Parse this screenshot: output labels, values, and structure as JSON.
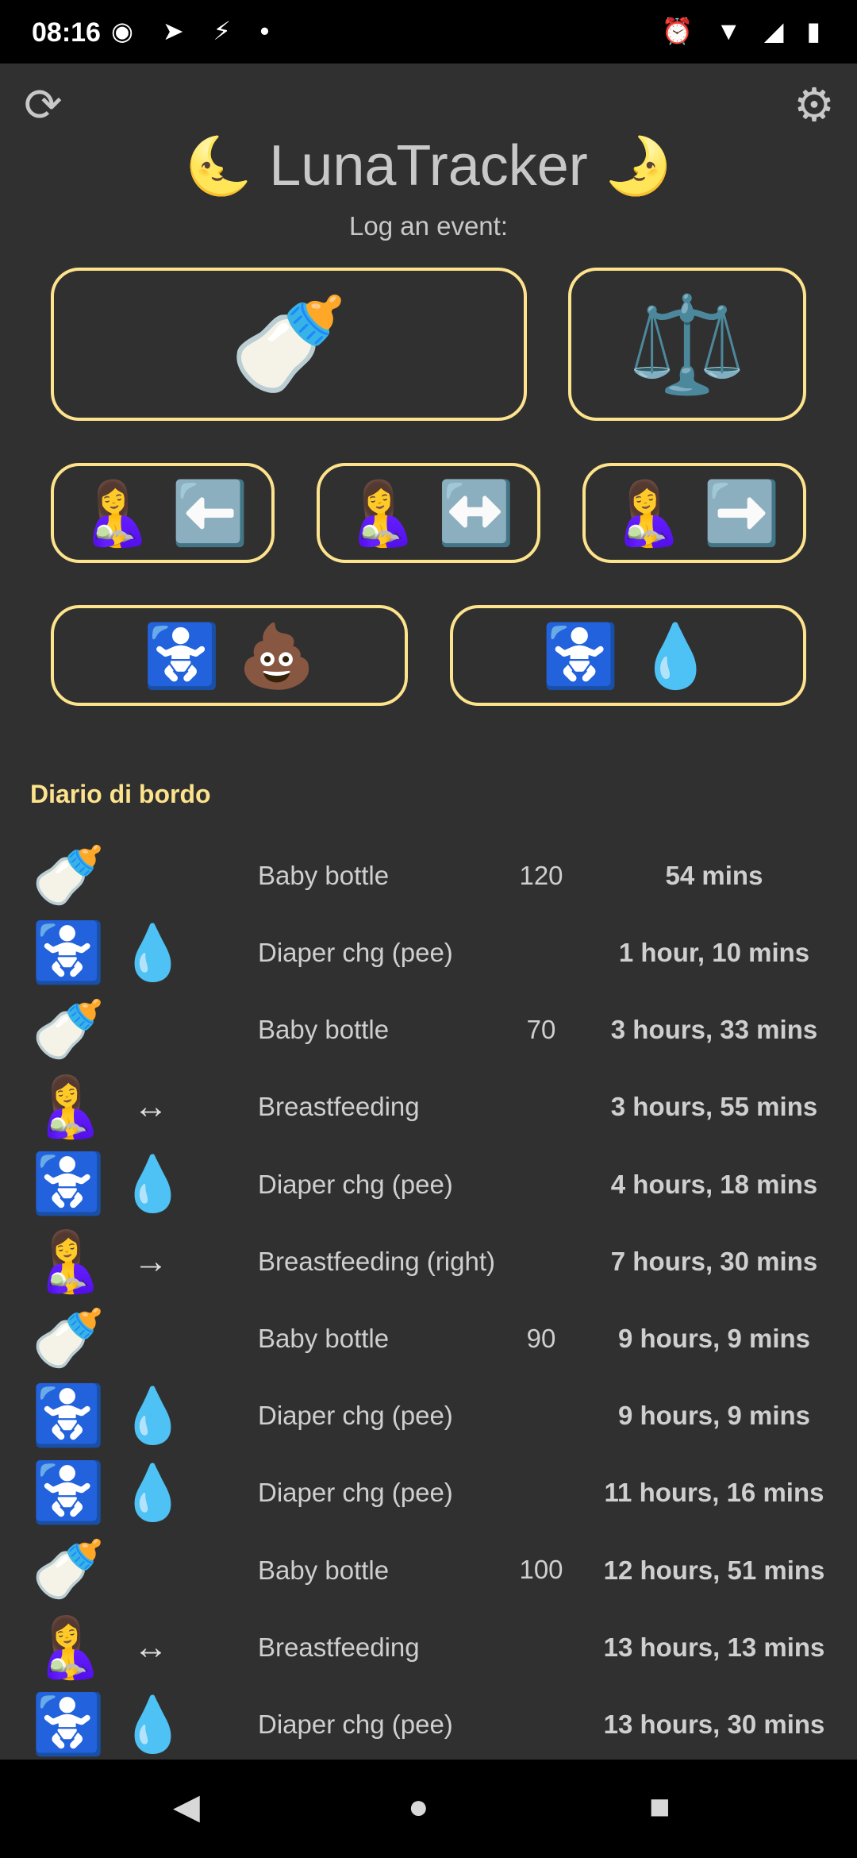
{
  "status_bar": {
    "time": "08:16",
    "left_icons": "◉ ➤ ⚡ •",
    "right_icons": "⏰ ▼ ◢ ▮"
  },
  "header": {
    "refresh_icon": "⟳",
    "settings_icon": "⚙",
    "moon_left": "🌜",
    "title": "LunaTracker",
    "moon_right": "🌛",
    "subtitle": "Log an event:"
  },
  "buttons": {
    "bottle": "🍼",
    "weight": "⚖️",
    "breast_left": [
      "🤱",
      "⬅️"
    ],
    "breast_both": [
      "🤱",
      "↔️"
    ],
    "breast_right": [
      "🤱",
      "➡️"
    ],
    "diaper_poo": [
      "🚼",
      "💩"
    ],
    "diaper_pee": [
      "🚼",
      "💧"
    ]
  },
  "log": {
    "title": "Diario di bordo",
    "entries": [
      {
        "icon1": "🍼",
        "icon2": "",
        "label": "Baby bottle",
        "amount": "120",
        "time": "54 mins"
      },
      {
        "icon1": "🚼",
        "icon2": "💧",
        "label": "Diaper chg (pee)",
        "amount": "",
        "time": "1 hour, 10 mins"
      },
      {
        "icon1": "🍼",
        "icon2": "",
        "label": "Baby bottle",
        "amount": "70",
        "time": "3 hours, 33 mins"
      },
      {
        "icon1": "🤱",
        "icon2": "↔",
        "label": "Breastfeeding",
        "amount": "",
        "time": "3 hours, 55 mins"
      },
      {
        "icon1": "🚼",
        "icon2": "💧",
        "label": "Diaper chg (pee)",
        "amount": "",
        "time": "4 hours, 18 mins"
      },
      {
        "icon1": "🤱",
        "icon2": "→",
        "label": "Breastfeeding (right)",
        "amount": "",
        "time": "7 hours, 30 mins"
      },
      {
        "icon1": "🍼",
        "icon2": "",
        "label": "Baby bottle",
        "amount": "90",
        "time": "9 hours, 9 mins"
      },
      {
        "icon1": "🚼",
        "icon2": "💧",
        "label": "Diaper chg (pee)",
        "amount": "",
        "time": "9 hours, 9 mins"
      },
      {
        "icon1": "🚼",
        "icon2": "💧",
        "label": "Diaper chg (pee)",
        "amount": "",
        "time": "11 hours, 16 mins"
      },
      {
        "icon1": "🍼",
        "icon2": "",
        "label": "Baby bottle",
        "amount": "100",
        "time": "12 hours, 51 mins"
      },
      {
        "icon1": "🤱",
        "icon2": "↔",
        "label": "Breastfeeding",
        "amount": "",
        "time": "13 hours, 13 mins"
      },
      {
        "icon1": "🚼",
        "icon2": "💧",
        "label": "Diaper chg (pee)",
        "amount": "",
        "time": "13 hours, 30 mins"
      }
    ]
  },
  "nav": {
    "back": "◀",
    "home": "●",
    "recents": "■"
  },
  "colors": {
    "background": "#303030",
    "accent": "#fde38c",
    "text": "#cfcfcf"
  }
}
